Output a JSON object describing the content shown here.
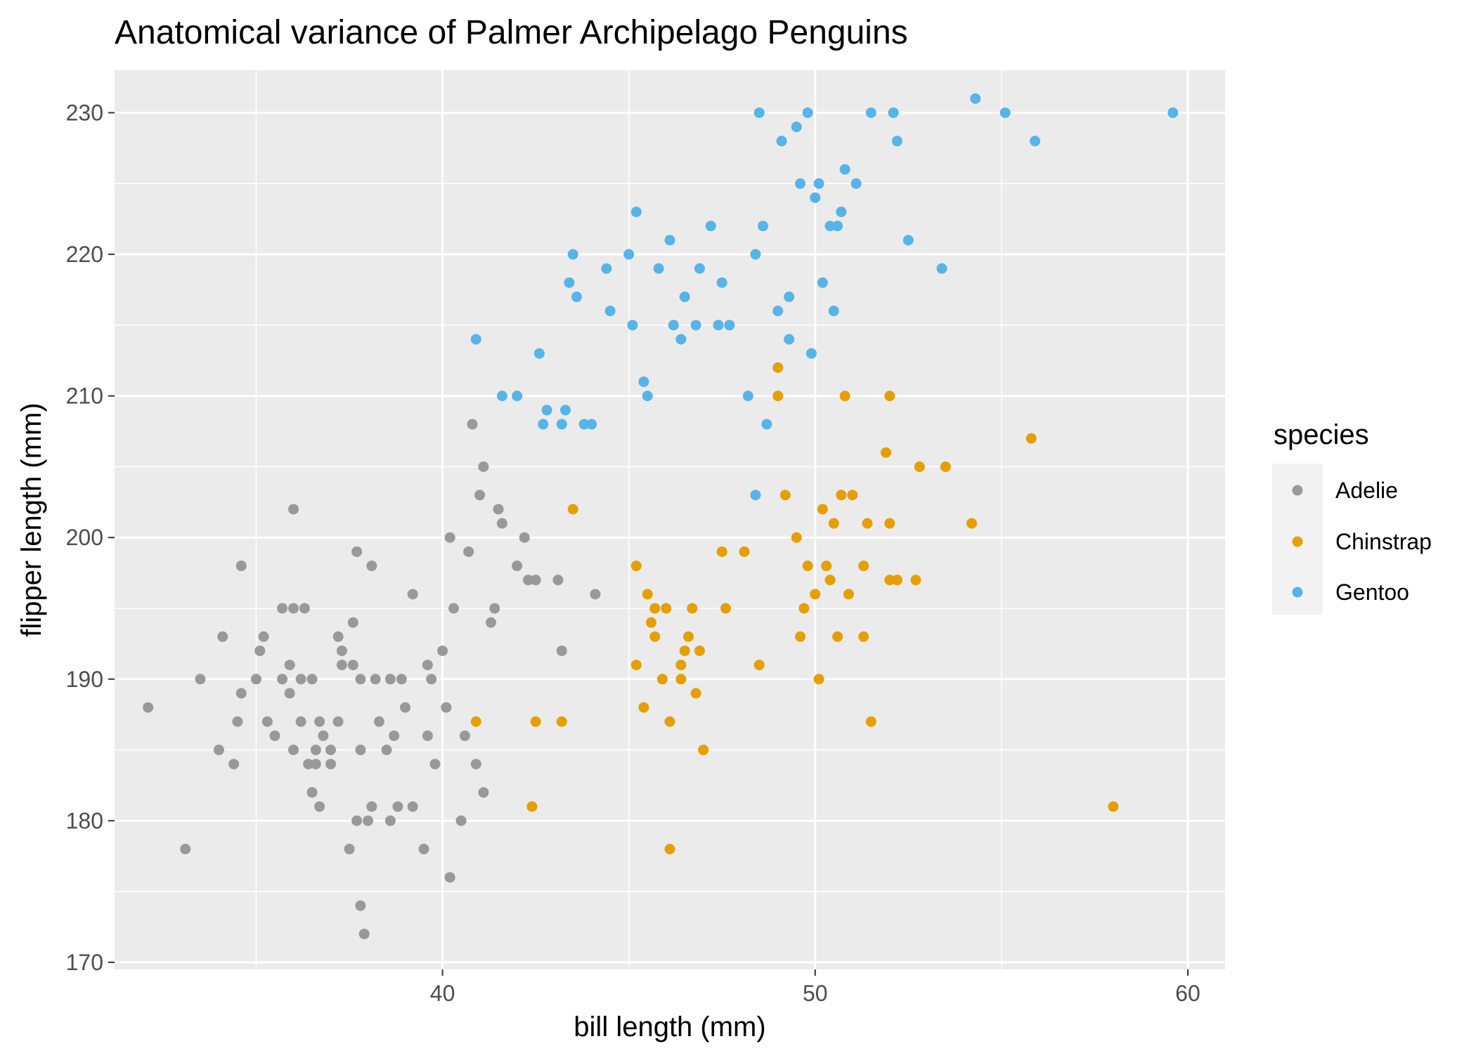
{
  "chart_data": {
    "type": "scatter",
    "title": "Anatomical variance of Palmer Archipelago Penguins",
    "xlabel": "bill length (mm)",
    "ylabel": "flipper length (mm)",
    "xlim": [
      31.2,
      61.0
    ],
    "ylim": [
      169.5,
      233.0
    ],
    "x_ticks": [
      40,
      50,
      60
    ],
    "y_ticks": [
      170,
      180,
      190,
      200,
      210,
      220,
      230
    ],
    "grid": true,
    "background": "#ebebeb",
    "legend": {
      "title": "species",
      "position": "right",
      "entries": [
        "Adelie",
        "Chinstrap",
        "Gentoo"
      ]
    },
    "series": [
      {
        "name": "Adelie",
        "color": "#999999",
        "points": [
          [
            32.1,
            188
          ],
          [
            33.1,
            178
          ],
          [
            33.5,
            190
          ],
          [
            34.0,
            185
          ],
          [
            34.1,
            193
          ],
          [
            34.4,
            184
          ],
          [
            34.5,
            187
          ],
          [
            34.6,
            198
          ],
          [
            34.6,
            189
          ],
          [
            35.0,
            190
          ],
          [
            35.1,
            192
          ],
          [
            35.2,
            193
          ],
          [
            35.3,
            187
          ],
          [
            35.5,
            186
          ],
          [
            35.7,
            195
          ],
          [
            35.7,
            190
          ],
          [
            35.9,
            191
          ],
          [
            35.9,
            189
          ],
          [
            36.0,
            185
          ],
          [
            36.0,
            195
          ],
          [
            36.0,
            202
          ],
          [
            36.2,
            190
          ],
          [
            36.2,
            187
          ],
          [
            36.3,
            195
          ],
          [
            36.4,
            184
          ],
          [
            36.5,
            182
          ],
          [
            36.5,
            190
          ],
          [
            36.6,
            185
          ],
          [
            36.6,
            184
          ],
          [
            36.7,
            187
          ],
          [
            36.7,
            181
          ],
          [
            36.8,
            186
          ],
          [
            37.0,
            185
          ],
          [
            37.0,
            184
          ],
          [
            37.2,
            193
          ],
          [
            37.2,
            187
          ],
          [
            37.3,
            191
          ],
          [
            37.3,
            192
          ],
          [
            37.5,
            178
          ],
          [
            37.6,
            194
          ],
          [
            37.6,
            191
          ],
          [
            37.7,
            199
          ],
          [
            37.7,
            180
          ],
          [
            37.8,
            174
          ],
          [
            37.8,
            185
          ],
          [
            37.8,
            190
          ],
          [
            37.9,
            172
          ],
          [
            38.0,
            180
          ],
          [
            38.1,
            181
          ],
          [
            38.1,
            198
          ],
          [
            38.2,
            190
          ],
          [
            38.3,
            187
          ],
          [
            38.5,
            185
          ],
          [
            38.6,
            180
          ],
          [
            38.6,
            190
          ],
          [
            38.7,
            186
          ],
          [
            38.8,
            181
          ],
          [
            38.9,
            190
          ],
          [
            39.0,
            188
          ],
          [
            39.2,
            181
          ],
          [
            39.2,
            196
          ],
          [
            39.5,
            178
          ],
          [
            39.6,
            186
          ],
          [
            39.6,
            191
          ],
          [
            39.7,
            190
          ],
          [
            39.8,
            184
          ],
          [
            40.0,
            192
          ],
          [
            40.1,
            188
          ],
          [
            40.2,
            176
          ],
          [
            40.2,
            200
          ],
          [
            40.3,
            195
          ],
          [
            40.5,
            180
          ],
          [
            40.6,
            186
          ],
          [
            40.7,
            199
          ],
          [
            40.8,
            208
          ],
          [
            40.9,
            184
          ],
          [
            41.0,
            203
          ],
          [
            41.1,
            182
          ],
          [
            41.1,
            205
          ],
          [
            41.3,
            194
          ],
          [
            41.4,
            195
          ],
          [
            41.5,
            202
          ],
          [
            41.6,
            201
          ],
          [
            42.0,
            198
          ],
          [
            42.2,
            200
          ],
          [
            42.3,
            197
          ],
          [
            42.5,
            197
          ],
          [
            43.1,
            197
          ],
          [
            43.2,
            192
          ],
          [
            44.1,
            196
          ]
        ]
      },
      {
        "name": "Chinstrap",
        "color": "#e69f00",
        "points": [
          [
            40.9,
            187
          ],
          [
            42.4,
            181
          ],
          [
            42.5,
            187
          ],
          [
            43.2,
            187
          ],
          [
            43.5,
            202
          ],
          [
            45.2,
            191
          ],
          [
            45.2,
            198
          ],
          [
            45.4,
            188
          ],
          [
            45.5,
            196
          ],
          [
            45.6,
            194
          ],
          [
            45.7,
            195
          ],
          [
            45.7,
            193
          ],
          [
            45.9,
            190
          ],
          [
            46.0,
            195
          ],
          [
            46.1,
            178
          ],
          [
            46.1,
            187
          ],
          [
            46.4,
            190
          ],
          [
            46.4,
            191
          ],
          [
            46.5,
            192
          ],
          [
            46.6,
            193
          ],
          [
            46.7,
            195
          ],
          [
            46.8,
            189
          ],
          [
            46.9,
            192
          ],
          [
            47.0,
            185
          ],
          [
            47.5,
            199
          ],
          [
            47.6,
            195
          ],
          [
            48.1,
            199
          ],
          [
            48.5,
            191
          ],
          [
            49.0,
            210
          ],
          [
            49.0,
            212
          ],
          [
            49.2,
            203
          ],
          [
            49.5,
            200
          ],
          [
            49.6,
            193
          ],
          [
            49.7,
            195
          ],
          [
            49.8,
            198
          ],
          [
            50.0,
            196
          ],
          [
            50.1,
            190
          ],
          [
            50.2,
            202
          ],
          [
            50.3,
            198
          ],
          [
            50.4,
            197
          ],
          [
            50.5,
            201
          ],
          [
            50.6,
            193
          ],
          [
            50.7,
            203
          ],
          [
            50.8,
            210
          ],
          [
            50.9,
            196
          ],
          [
            51.0,
            203
          ],
          [
            51.3,
            193
          ],
          [
            51.4,
            201
          ],
          [
            51.5,
            187
          ],
          [
            51.9,
            206
          ],
          [
            52.0,
            197
          ],
          [
            52.0,
            210
          ],
          [
            52.0,
            201
          ],
          [
            52.2,
            197
          ],
          [
            52.7,
            197
          ],
          [
            52.8,
            205
          ],
          [
            53.5,
            205
          ],
          [
            54.2,
            201
          ],
          [
            55.8,
            207
          ],
          [
            58.0,
            181
          ],
          [
            51.3,
            198
          ]
        ]
      },
      {
        "name": "Gentoo",
        "color": "#56b4e9",
        "points": [
          [
            40.9,
            214
          ],
          [
            41.6,
            210
          ],
          [
            42.0,
            210
          ],
          [
            42.6,
            213
          ],
          [
            42.7,
            208
          ],
          [
            42.8,
            209
          ],
          [
            43.2,
            208
          ],
          [
            43.3,
            209
          ],
          [
            43.4,
            218
          ],
          [
            43.5,
            220
          ],
          [
            43.6,
            217
          ],
          [
            43.8,
            208
          ],
          [
            44.0,
            208
          ],
          [
            44.4,
            219
          ],
          [
            44.5,
            216
          ],
          [
            45.0,
            220
          ],
          [
            45.1,
            215
          ],
          [
            45.2,
            223
          ],
          [
            45.4,
            211
          ],
          [
            45.5,
            210
          ],
          [
            45.8,
            219
          ],
          [
            46.1,
            221
          ],
          [
            46.2,
            215
          ],
          [
            46.4,
            214
          ],
          [
            46.5,
            217
          ],
          [
            46.8,
            215
          ],
          [
            46.9,
            219
          ],
          [
            47.2,
            222
          ],
          [
            47.4,
            215
          ],
          [
            47.5,
            218
          ],
          [
            47.7,
            215
          ],
          [
            48.2,
            210
          ],
          [
            48.4,
            220
          ],
          [
            48.5,
            230
          ],
          [
            48.6,
            222
          ],
          [
            48.7,
            208
          ],
          [
            49.0,
            216
          ],
          [
            49.1,
            228
          ],
          [
            49.3,
            217
          ],
          [
            49.5,
            229
          ],
          [
            49.6,
            225
          ],
          [
            49.8,
            230
          ],
          [
            49.9,
            213
          ],
          [
            50.0,
            224
          ],
          [
            50.1,
            225
          ],
          [
            50.2,
            218
          ],
          [
            50.4,
            222
          ],
          [
            50.5,
            216
          ],
          [
            50.6,
            222
          ],
          [
            50.7,
            223
          ],
          [
            50.8,
            226
          ],
          [
            51.1,
            225
          ],
          [
            51.5,
            230
          ],
          [
            52.1,
            230
          ],
          [
            52.2,
            228
          ],
          [
            52.5,
            221
          ],
          [
            53.4,
            219
          ],
          [
            54.3,
            231
          ],
          [
            55.1,
            230
          ],
          [
            55.9,
            228
          ],
          [
            59.6,
            230
          ],
          [
            48.4,
            203
          ],
          [
            49.3,
            214
          ]
        ]
      }
    ]
  }
}
